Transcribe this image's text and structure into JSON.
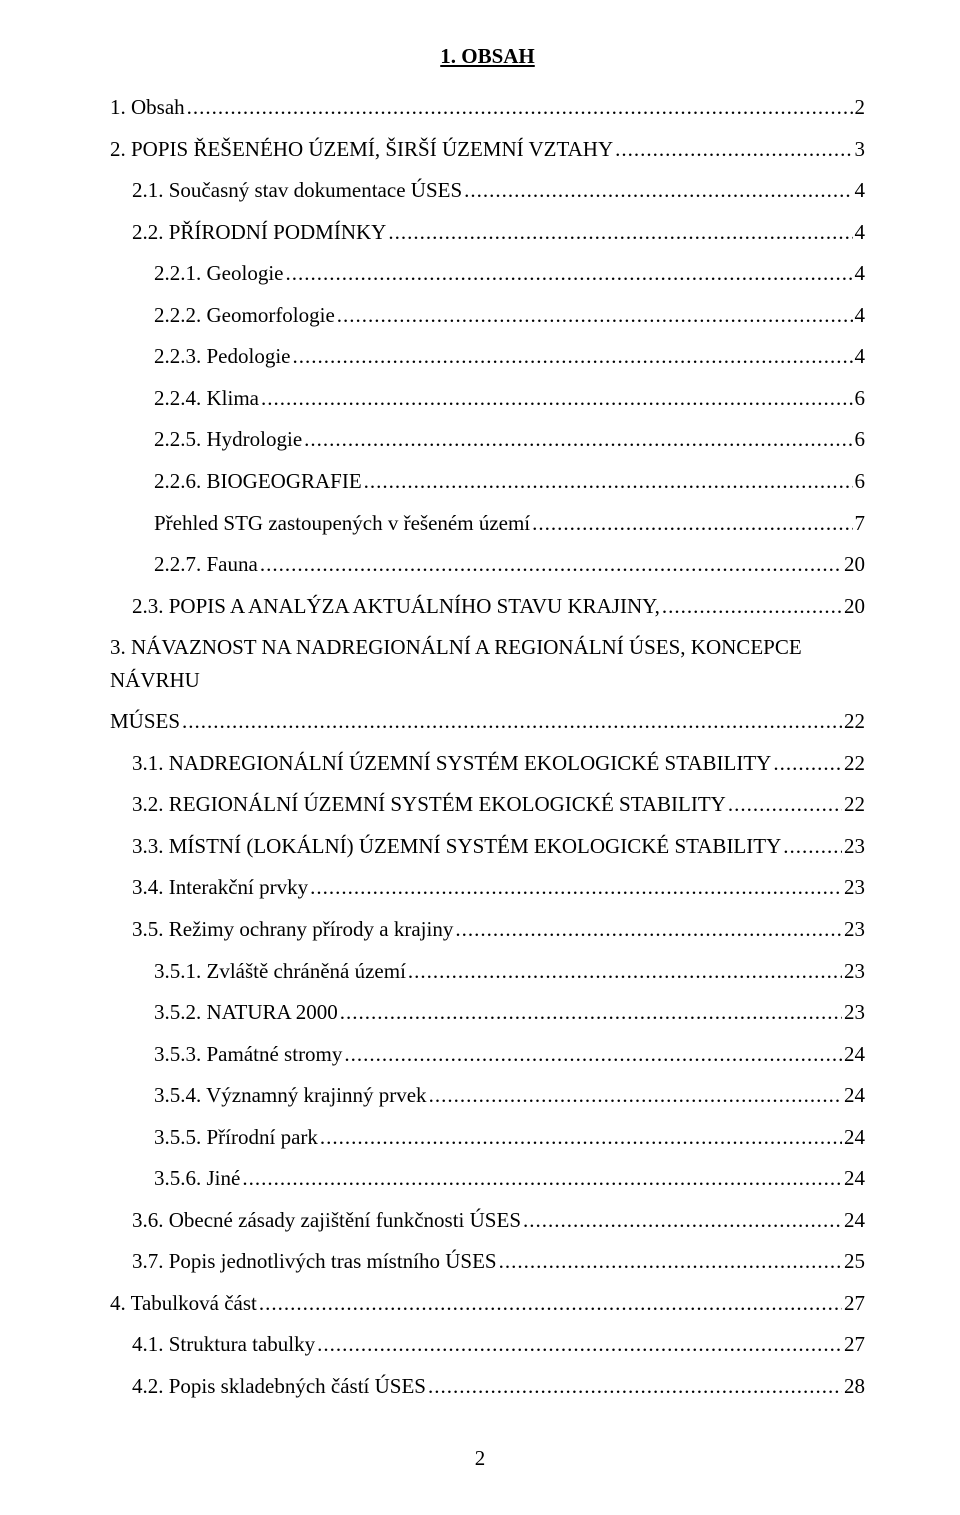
{
  "title": "1. OBSAH",
  "page_number": "2",
  "toc": [
    {
      "label": "1. Obsah",
      "page": "2",
      "indent": 0
    },
    {
      "label": "2. POPIS ŘEŠENÉHO ÚZEMÍ, ŠIRŠÍ ÚZEMNÍ VZTAHY",
      "page": "3",
      "indent": 0
    },
    {
      "label": "2.1. Současný stav dokumentace ÚSES",
      "page": "4",
      "indent": 1
    },
    {
      "label": "2.2. PŘÍRODNÍ PODMÍNKY",
      "page": "4",
      "indent": 1
    },
    {
      "label": "2.2.1. Geologie",
      "page": "4",
      "indent": 2
    },
    {
      "label": "2.2.2. Geomorfologie",
      "page": "4",
      "indent": 2
    },
    {
      "label": "2.2.3. Pedologie",
      "page": "4",
      "indent": 2
    },
    {
      "label": "2.2.4. Klima",
      "page": "6",
      "indent": 2
    },
    {
      "label": "2.2.5. Hydrologie",
      "page": "6",
      "indent": 2
    },
    {
      "label": "2.2.6. BIOGEOGRAFIE",
      "page": "6",
      "indent": 2
    },
    {
      "label": "Přehled STG zastoupených v řešeném území",
      "page": "7",
      "indent": 2
    },
    {
      "label": "2.2.7. Fauna",
      "page": "20",
      "indent": 2
    },
    {
      "label": "2.3. POPIS A ANALÝZA AKTUÁLNÍHO STAVU KRAJINY,",
      "page": "20",
      "indent": 1
    },
    {
      "label_prefix": "3. NÁVAZNOST NA NADREGIONÁLNÍ A REGIONÁLNÍ ÚSES, KONCEPCE NÁVRHU",
      "label_cont": "MÚSES",
      "page": "22",
      "indent": 0,
      "wrap": true
    },
    {
      "label": "3.1. NADREGIONÁLNÍ ÚZEMNÍ SYSTÉM EKOLOGICKÉ STABILITY",
      "page": "22",
      "indent": 1
    },
    {
      "label": "3.2. REGIONÁLNÍ ÚZEMNÍ SYSTÉM EKOLOGICKÉ STABILITY",
      "page": "22",
      "indent": 1
    },
    {
      "label": "3.3. MÍSTNÍ (LOKÁLNÍ) ÚZEMNÍ SYSTÉM EKOLOGICKÉ STABILITY",
      "page": "23",
      "indent": 1
    },
    {
      "label": "3.4. Interakční prvky",
      "page": "23",
      "indent": 1
    },
    {
      "label": "3.5. Režimy ochrany přírody a krajiny",
      "page": "23",
      "indent": 1
    },
    {
      "label": "3.5.1. Zvláště chráněná území",
      "page": "23",
      "indent": 2
    },
    {
      "label": "3.5.2. NATURA 2000",
      "page": "23",
      "indent": 2
    },
    {
      "label": "3.5.3. Památné stromy",
      "page": "24",
      "indent": 2
    },
    {
      "label": "3.5.4. Významný krajinný prvek",
      "page": "24",
      "indent": 2
    },
    {
      "label": "3.5.5. Přírodní park",
      "page": "24",
      "indent": 2
    },
    {
      "label": "3.5.6. Jiné",
      "page": "24",
      "indent": 2
    },
    {
      "label": "3.6. Obecné zásady zajištění funkčnosti ÚSES",
      "page": "24",
      "indent": 1
    },
    {
      "label": "3.7. Popis jednotlivých tras místního ÚSES",
      "page": "25",
      "indent": 1
    },
    {
      "label": "4. Tabulková část",
      "page": "27",
      "indent": 0
    },
    {
      "label": "4.1. Struktura tabulky",
      "page": "27",
      "indent": 1
    },
    {
      "label": "4.2. Popis skladebných částí ÚSES",
      "page": "28",
      "indent": 1
    }
  ]
}
